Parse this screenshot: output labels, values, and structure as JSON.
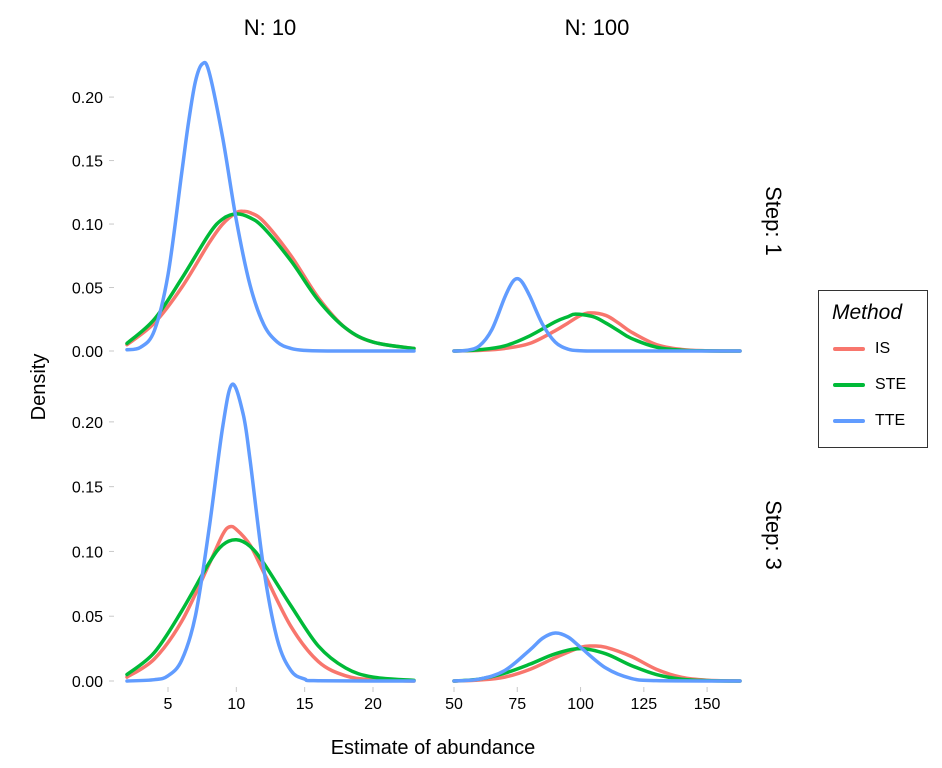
{
  "chart_data": {
    "type": "line",
    "xlabel": "Estimate of abundance",
    "ylabel": "Density",
    "legend": {
      "title": "Method",
      "placement": "right",
      "items": [
        {
          "name": "IS",
          "color": "#F8766D"
        },
        {
          "name": "STE",
          "color": "#00BA38"
        },
        {
          "name": "TTE",
          "color": "#619CFF"
        }
      ]
    },
    "columns": [
      {
        "label": "N: 10",
        "xlim": [
          2,
          23
        ],
        "xticks": [
          5,
          10,
          15,
          20
        ]
      },
      {
        "label": "N: 100",
        "xlim": [
          50,
          163
        ],
        "xticks": [
          50,
          75,
          100,
          125,
          150
        ]
      }
    ],
    "rows": [
      {
        "label": "Step: 1"
      },
      {
        "label": "Step: 3"
      }
    ],
    "ylim": [
      0,
      0.23
    ],
    "yticks": [
      "0.00",
      "0.05",
      "0.10",
      "0.15",
      "0.20"
    ],
    "grid": false,
    "panels": [
      {
        "column": "N: 10",
        "row": "Step: 1",
        "series": [
          {
            "name": "IS",
            "x": [
              2,
              4,
              6,
              8,
              9,
              10,
              10.5,
              11,
              12,
              14,
              16,
              18,
              20,
              23
            ],
            "y": [
              0.005,
              0.022,
              0.05,
              0.085,
              0.1,
              0.109,
              0.11,
              0.109,
              0.102,
              0.075,
              0.042,
              0.018,
              0.007,
              0.002
            ]
          },
          {
            "name": "STE",
            "x": [
              2,
              4,
              6,
              8,
              9,
              10,
              11,
              12,
              14,
              16,
              18,
              20,
              23
            ],
            "y": [
              0.006,
              0.025,
              0.057,
              0.092,
              0.104,
              0.108,
              0.105,
              0.097,
              0.071,
              0.04,
              0.018,
              0.007,
              0.002
            ]
          },
          {
            "name": "TTE",
            "x": [
              2,
              3,
              4,
              5,
              6,
              6.5,
              7,
              7.5,
              8,
              9,
              10,
              11,
              12,
              13,
              14,
              15,
              17,
              23
            ],
            "y": [
              0.001,
              0.003,
              0.016,
              0.06,
              0.14,
              0.18,
              0.212,
              0.226,
              0.22,
              0.168,
              0.103,
              0.052,
              0.021,
              0.007,
              0.002,
              0.0005,
              0,
              0
            ]
          }
        ]
      },
      {
        "column": "N: 100",
        "row": "Step: 1",
        "series": [
          {
            "name": "IS",
            "x": [
              50,
              60,
              70,
              80,
              90,
              95,
              100,
              104,
              110,
              115,
              120,
              130,
              140,
              150,
              163
            ],
            "y": [
              0,
              0.0005,
              0.002,
              0.006,
              0.016,
              0.022,
              0.028,
              0.03,
              0.028,
              0.022,
              0.015,
              0.005,
              0.0012,
              0.0002,
              0
            ]
          },
          {
            "name": "STE",
            "x": [
              50,
              60,
              70,
              80,
              90,
              95,
              98,
              105,
              110,
              115,
              120,
              130,
              140,
              150,
              163
            ],
            "y": [
              0,
              0.001,
              0.004,
              0.012,
              0.023,
              0.027,
              0.029,
              0.027,
              0.022,
              0.016,
              0.01,
              0.003,
              0.0006,
              0.0001,
              0
            ]
          },
          {
            "name": "TTE",
            "x": [
              50,
              55,
              60,
              65,
              70,
              73,
              75,
              77,
              80,
              85,
              90,
              95,
              100,
              110,
              163
            ],
            "y": [
              0,
              0.0005,
              0.004,
              0.017,
              0.042,
              0.054,
              0.057,
              0.054,
              0.043,
              0.021,
              0.007,
              0.0015,
              0.0002,
              0,
              0
            ]
          }
        ]
      },
      {
        "column": "N: 10",
        "row": "Step: 3",
        "series": [
          {
            "name": "IS",
            "x": [
              2,
              4,
              6,
              8,
              9,
              9.5,
              10,
              11,
              12,
              14,
              16,
              18,
              20,
              23
            ],
            "y": [
              0.003,
              0.017,
              0.046,
              0.09,
              0.113,
              0.119,
              0.117,
              0.105,
              0.084,
              0.042,
              0.015,
              0.004,
              0.001,
              0
            ]
          },
          {
            "name": "STE",
            "x": [
              2,
              4,
              6,
              8,
              9,
              10,
              11,
              12,
              14,
              16,
              18,
              20,
              23
            ],
            "y": [
              0.005,
              0.022,
              0.054,
              0.091,
              0.105,
              0.109,
              0.104,
              0.091,
              0.058,
              0.027,
              0.01,
              0.003,
              0.0005
            ]
          },
          {
            "name": "TTE",
            "x": [
              2,
              4,
              5,
              6,
              7,
              8,
              9,
              9.7,
              10.5,
              11,
              12,
              13,
              14,
              15,
              16,
              23
            ],
            "y": [
              0,
              0.001,
              0.004,
              0.016,
              0.05,
              0.117,
              0.196,
              0.229,
              0.206,
              0.171,
              0.087,
              0.032,
              0.008,
              0.0015,
              0.0002,
              0
            ]
          }
        ]
      },
      {
        "column": "N: 100",
        "row": "Step: 3",
        "series": [
          {
            "name": "IS",
            "x": [
              50,
              60,
              70,
              80,
              90,
              100,
              105,
              110,
              120,
              130,
              140,
              150,
              163
            ],
            "y": [
              0,
              0.0008,
              0.003,
              0.009,
              0.018,
              0.026,
              0.027,
              0.026,
              0.019,
              0.009,
              0.0028,
              0.0006,
              0
            ]
          },
          {
            "name": "STE",
            "x": [
              50,
              60,
              70,
              80,
              90,
              100,
              110,
              120,
              130,
              140,
              150,
              163
            ],
            "y": [
              0,
              0.0015,
              0.006,
              0.013,
              0.021,
              0.025,
              0.021,
              0.012,
              0.005,
              0.0014,
              0.0003,
              0
            ]
          },
          {
            "name": "TTE",
            "x": [
              50,
              60,
              70,
              80,
              85,
              90,
              95,
              100,
              110,
              120,
              130,
              163
            ],
            "y": [
              0,
              0.0015,
              0.008,
              0.024,
              0.033,
              0.037,
              0.034,
              0.026,
              0.01,
              0.002,
              0.0003,
              0
            ]
          }
        ]
      }
    ]
  }
}
